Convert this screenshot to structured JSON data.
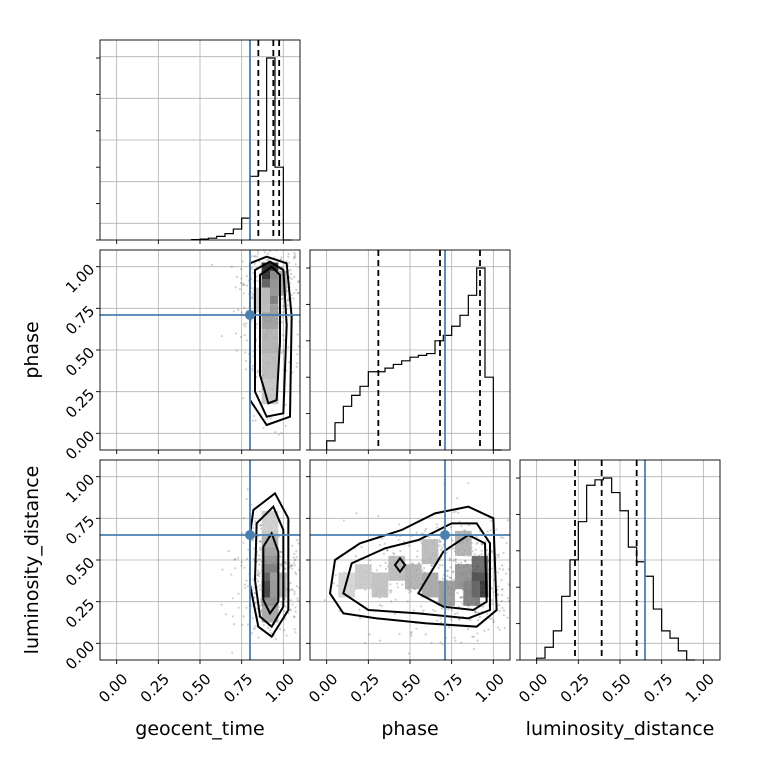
{
  "chart_data": {
    "type": "corner",
    "parameters": [
      {
        "key": "geocent_time",
        "label": "geocent_time"
      },
      {
        "key": "phase",
        "label": "phase"
      },
      {
        "key": "luminosity_distance",
        "label": "luminosity_distance"
      }
    ],
    "axis_range": [
      -0.1,
      1.1
    ],
    "ticks": [
      0.0,
      0.25,
      0.5,
      0.75,
      1.0
    ],
    "tick_labels": [
      "0.00",
      "0.25",
      "0.50",
      "0.75",
      "1.00"
    ],
    "grid": true,
    "truth_color": "#4a7fb0",
    "truths": {
      "geocent_time": 0.8,
      "phase": 0.71,
      "luminosity_distance": 0.65
    },
    "histograms": {
      "geocent_time": {
        "bin_edges": [
          0.45,
          0.5,
          0.55,
          0.6,
          0.65,
          0.7,
          0.75,
          0.8,
          0.85,
          0.9,
          0.95,
          1.0,
          1.05
        ],
        "heights": [
          0.002,
          0.005,
          0.01,
          0.02,
          0.035,
          0.06,
          0.12,
          0.35,
          0.38,
          1.0,
          0.4,
          0.0
        ],
        "quantiles": [
          0.85,
          0.94,
          0.975
        ]
      },
      "phase": {
        "bin_edges": [
          0.0,
          0.05,
          0.1,
          0.15,
          0.2,
          0.25,
          0.3,
          0.35,
          0.4,
          0.45,
          0.5,
          0.55,
          0.6,
          0.65,
          0.7,
          0.75,
          0.8,
          0.85,
          0.9,
          0.95,
          1.0,
          1.05
        ],
        "heights": [
          0.05,
          0.15,
          0.24,
          0.3,
          0.35,
          0.43,
          0.43,
          0.45,
          0.47,
          0.49,
          0.51,
          0.52,
          0.53,
          0.6,
          0.63,
          0.68,
          0.74,
          0.85,
          1.0,
          0.4,
          0.0
        ],
        "quantiles": [
          0.31,
          0.68,
          0.92
        ]
      },
      "luminosity_distance": {
        "bin_edges": [
          0.0,
          0.05,
          0.1,
          0.15,
          0.2,
          0.25,
          0.3,
          0.35,
          0.4,
          0.45,
          0.5,
          0.55,
          0.6,
          0.65,
          0.7,
          0.75,
          0.8,
          0.85,
          0.9,
          0.95
        ],
        "heights": [
          0.01,
          0.07,
          0.16,
          0.35,
          0.55,
          0.76,
          0.96,
          0.99,
          1.0,
          0.92,
          0.82,
          0.62,
          0.54,
          0.46,
          0.28,
          0.16,
          0.12,
          0.05,
          0.0
        ],
        "quantiles": [
          0.23,
          0.39,
          0.6
        ]
      }
    },
    "heatmaps": [
      {
        "x": "geocent_time",
        "y": "phase",
        "density": [
          {
            "x": 0.92,
            "y": 0.95,
            "v": 0.95
          },
          {
            "x": 0.92,
            "y": 0.85,
            "v": 0.55
          },
          {
            "x": 0.92,
            "y": 0.7,
            "v": 0.4
          },
          {
            "x": 0.92,
            "y": 0.55,
            "v": 0.3
          },
          {
            "x": 0.92,
            "y": 0.4,
            "v": 0.25
          },
          {
            "x": 0.92,
            "y": 0.25,
            "v": 0.2
          },
          {
            "x": 0.97,
            "y": 0.9,
            "v": 0.35
          },
          {
            "x": 0.87,
            "y": 0.8,
            "v": 0.18
          }
        ],
        "contours": [
          [
            [
              0.8,
              1.02
            ],
            [
              0.9,
              1.06
            ],
            [
              1.02,
              1.02
            ],
            [
              1.05,
              0.7
            ],
            [
              1.04,
              0.1
            ],
            [
              0.9,
              0.05
            ],
            [
              0.8,
              0.2
            ],
            [
              0.8,
              0.7
            ]
          ],
          [
            [
              0.83,
              0.98
            ],
            [
              0.92,
              1.03
            ],
            [
              1.0,
              0.98
            ],
            [
              1.02,
              0.65
            ],
            [
              1.0,
              0.12
            ],
            [
              0.9,
              0.1
            ],
            [
              0.83,
              0.25
            ],
            [
              0.83,
              0.7
            ]
          ],
          [
            [
              0.86,
              0.95
            ],
            [
              0.93,
              1.0
            ],
            [
              0.98,
              0.95
            ],
            [
              0.98,
              0.55
            ],
            [
              0.96,
              0.2
            ],
            [
              0.91,
              0.18
            ],
            [
              0.86,
              0.35
            ],
            [
              0.86,
              0.75
            ]
          ]
        ]
      },
      {
        "x": "geocent_time",
        "y": "luminosity_distance",
        "density": [
          {
            "x": 0.92,
            "y": 0.3,
            "v": 0.85
          },
          {
            "x": 0.92,
            "y": 0.4,
            "v": 0.7
          },
          {
            "x": 0.92,
            "y": 0.5,
            "v": 0.45
          },
          {
            "x": 0.92,
            "y": 0.6,
            "v": 0.3
          },
          {
            "x": 0.92,
            "y": 0.2,
            "v": 0.35
          },
          {
            "x": 0.92,
            "y": 0.72,
            "v": 0.15
          },
          {
            "x": 0.97,
            "y": 0.35,
            "v": 0.3
          }
        ],
        "contours": [
          [
            [
              0.82,
              0.8
            ],
            [
              0.95,
              0.9
            ],
            [
              1.03,
              0.75
            ],
            [
              1.03,
              0.2
            ],
            [
              0.93,
              0.04
            ],
            [
              0.85,
              0.1
            ],
            [
              0.8,
              0.35
            ],
            [
              0.8,
              0.65
            ]
          ],
          [
            [
              0.84,
              0.72
            ],
            [
              0.94,
              0.82
            ],
            [
              1.0,
              0.68
            ],
            [
              1.0,
              0.22
            ],
            [
              0.93,
              0.1
            ],
            [
              0.86,
              0.16
            ],
            [
              0.83,
              0.38
            ]
          ],
          [
            [
              0.88,
              0.58
            ],
            [
              0.93,
              0.66
            ],
            [
              0.97,
              0.55
            ],
            [
              0.97,
              0.25
            ],
            [
              0.92,
              0.18
            ],
            [
              0.88,
              0.26
            ]
          ]
        ]
      },
      {
        "x": "phase",
        "y": "luminosity_distance",
        "density": [
          {
            "x": 0.92,
            "y": 0.35,
            "v": 0.9
          },
          {
            "x": 0.92,
            "y": 0.45,
            "v": 0.65
          },
          {
            "x": 0.87,
            "y": 0.3,
            "v": 0.55
          },
          {
            "x": 0.82,
            "y": 0.4,
            "v": 0.45
          },
          {
            "x": 0.72,
            "y": 0.3,
            "v": 0.4
          },
          {
            "x": 0.62,
            "y": 0.35,
            "v": 0.35
          },
          {
            "x": 0.52,
            "y": 0.4,
            "v": 0.3
          },
          {
            "x": 0.42,
            "y": 0.45,
            "v": 0.25
          },
          {
            "x": 0.32,
            "y": 0.35,
            "v": 0.22
          },
          {
            "x": 0.22,
            "y": 0.4,
            "v": 0.18
          },
          {
            "x": 0.12,
            "y": 0.35,
            "v": 0.12
          },
          {
            "x": 0.62,
            "y": 0.55,
            "v": 0.25
          },
          {
            "x": 0.82,
            "y": 0.6,
            "v": 0.3
          }
        ],
        "contours": [
          [
            [
              0.02,
              0.3
            ],
            [
              0.05,
              0.5
            ],
            [
              0.2,
              0.6
            ],
            [
              0.45,
              0.68
            ],
            [
              0.65,
              0.78
            ],
            [
              0.85,
              0.82
            ],
            [
              1.0,
              0.75
            ],
            [
              1.02,
              0.2
            ],
            [
              0.9,
              0.1
            ],
            [
              0.6,
              0.12
            ],
            [
              0.3,
              0.15
            ],
            [
              0.1,
              0.18
            ]
          ],
          [
            [
              0.1,
              0.3
            ],
            [
              0.15,
              0.48
            ],
            [
              0.35,
              0.57
            ],
            [
              0.55,
              0.62
            ],
            [
              0.75,
              0.72
            ],
            [
              0.9,
              0.72
            ],
            [
              0.98,
              0.6
            ],
            [
              0.98,
              0.2
            ],
            [
              0.85,
              0.15
            ],
            [
              0.55,
              0.18
            ],
            [
              0.25,
              0.2
            ]
          ],
          [
            [
              0.55,
              0.3
            ],
            [
              0.7,
              0.55
            ],
            [
              0.85,
              0.65
            ],
            [
              0.95,
              0.6
            ],
            [
              0.96,
              0.25
            ],
            [
              0.88,
              0.2
            ],
            [
              0.7,
              0.22
            ]
          ],
          [
            [
              0.41,
              0.47
            ],
            [
              0.44,
              0.43
            ],
            [
              0.47,
              0.47
            ],
            [
              0.44,
              0.51
            ]
          ]
        ]
      }
    ]
  }
}
